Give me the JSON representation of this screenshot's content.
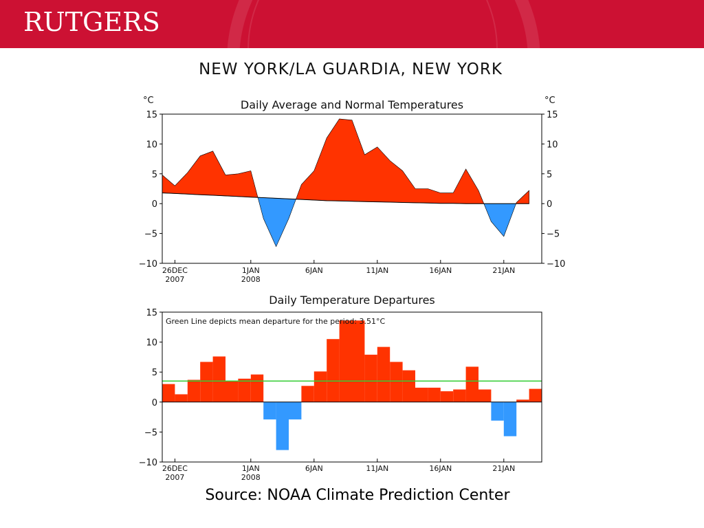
{
  "slide": {
    "logo_text": "RUTGERS",
    "main_title": "NEW YORK/LA GUARDIA, NEW YORK",
    "source": "Source: NOAA Climate Prediction Center"
  },
  "colors": {
    "header": "#cc1133",
    "above": "#ff3300",
    "below": "#3399ff",
    "mean_line": "#33cc33"
  },
  "chart_data": [
    {
      "type": "area",
      "title": "Daily Average and Normal Temperatures",
      "ylabel_left": "°C",
      "ylabel_right": "°C",
      "ylim": [
        -10,
        15
      ],
      "yticks": [
        15,
        10,
        5,
        0,
        -5,
        -10
      ],
      "ytick_labels": [
        "15",
        "10",
        "5",
        "0",
        "−5",
        "−10"
      ],
      "x_start_day": 25,
      "x_end_day": 55,
      "xticks": [
        {
          "day": 26,
          "line1": "26DEC",
          "line2": "2007"
        },
        {
          "day": 32,
          "line1": "1JAN",
          "line2": "2008"
        },
        {
          "day": 37,
          "line1": "6JAN",
          "line2": ""
        },
        {
          "day": 42,
          "line1": "11JAN",
          "line2": ""
        },
        {
          "day": 47,
          "line1": "16JAN",
          "line2": ""
        },
        {
          "day": 52,
          "line1": "21JAN",
          "line2": ""
        }
      ],
      "series": [
        {
          "values": [
            4.8,
            3.0,
            5.2,
            8.0,
            8.8,
            4.8,
            5.0,
            5.5,
            -2.5,
            -7.2,
            -2.5,
            3.2,
            5.5,
            11.0,
            14.2,
            14.0,
            8.2,
            9.5,
            7.2,
            5.5,
            2.5,
            2.5,
            1.8,
            1.8,
            5.8,
            2.2,
            -3.0,
            -5.5,
            0.2,
            2.2
          ]
        },
        {
          "values": [
            1.8,
            1.7,
            1.6,
            1.5,
            1.4,
            1.3,
            1.2,
            1.1,
            1.0,
            0.9,
            0.8,
            0.7,
            0.6,
            0.5,
            0.45,
            0.4,
            0.35,
            0.3,
            0.25,
            0.2,
            0.15,
            0.1,
            0.05,
            0.05,
            0.0,
            0.0,
            0.0,
            0.0,
            0.0,
            0.0
          ]
        }
      ]
    },
    {
      "type": "bar",
      "title": "Daily Temperature Departures",
      "annotation": "Green Line depicts mean departure for the period: 3.51°C",
      "mean_departure": 3.51,
      "ylim": [
        -10,
        15
      ],
      "yticks": [
        15,
        10,
        5,
        0,
        -5,
        -10
      ],
      "ytick_labels": [
        "15",
        "10",
        "5",
        "0",
        "−5",
        "−10"
      ],
      "x_start_day": 25,
      "x_end_day": 55,
      "xticks": [
        {
          "day": 26,
          "line1": "26DEC",
          "line2": "2007"
        },
        {
          "day": 32,
          "line1": "1JAN",
          "line2": "2008"
        },
        {
          "day": 37,
          "line1": "6JAN",
          "line2": ""
        },
        {
          "day": 42,
          "line1": "11JAN",
          "line2": ""
        },
        {
          "day": 47,
          "line1": "16JAN",
          "line2": ""
        },
        {
          "day": 52,
          "line1": "21JAN",
          "line2": ""
        }
      ],
      "values": [
        3.0,
        1.3,
        3.7,
        6.7,
        7.6,
        3.5,
        3.9,
        4.6,
        -2.9,
        -8.0,
        -2.9,
        2.7,
        5.1,
        10.5,
        13.6,
        13.6,
        7.9,
        9.2,
        6.7,
        5.3,
        2.4,
        2.4,
        1.8,
        2.1,
        5.9,
        2.1,
        -3.1,
        -5.7,
        0.4,
        2.2
      ]
    }
  ]
}
